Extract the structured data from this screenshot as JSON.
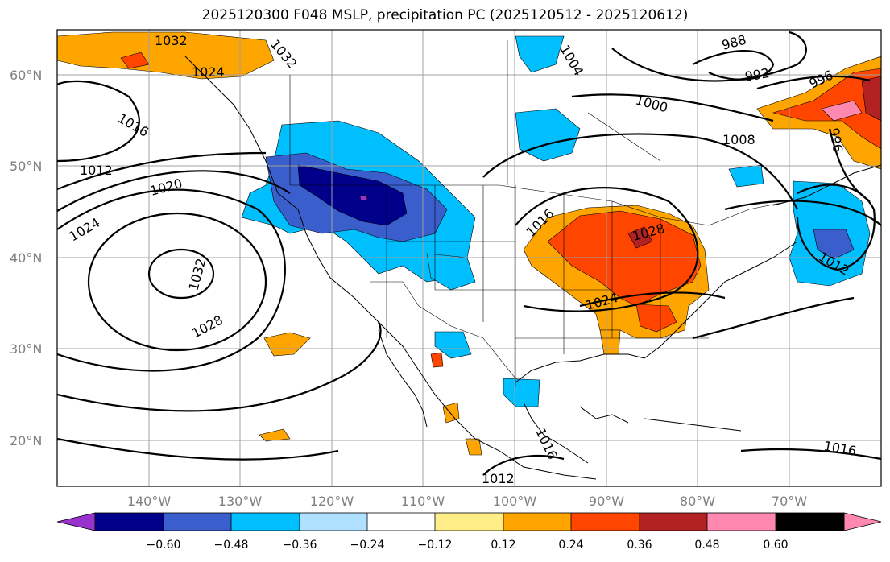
{
  "title": "2025120300 F048 MSLP, precipitation PC (2025120512 - 2025120612)",
  "lat_labels": [
    "60°N",
    "50°N",
    "40°N",
    "30°N",
    "20°N"
  ],
  "lon_labels": [
    "140°W",
    "130°W",
    "120°W",
    "110°W",
    "100°W",
    "90°W",
    "80°W",
    "70°W"
  ],
  "isobar_labels": [
    "1032",
    "1032",
    "1024",
    "1016",
    "1012",
    "1020",
    "1024",
    "1032",
    "1028",
    "1004",
    "988",
    "992",
    "996",
    "1000",
    "1008",
    "996",
    "1016",
    "1028",
    "1024",
    "1012",
    "1016",
    "1012",
    "1016"
  ],
  "colorbar": {
    "ticks": [
      "−0.60",
      "−0.48",
      "−0.36",
      "−0.24",
      "−0.12",
      "0.12",
      "0.24",
      "0.36",
      "0.48",
      "0.60"
    ],
    "colors": [
      "#9932cc",
      "#00008b",
      "#3a5fcd",
      "#00bfff",
      "#b0e0ff",
      "#ffffff",
      "#ffee88",
      "#ffa500",
      "#ff4500",
      "#b22222",
      "#ff88b0"
    ]
  },
  "colors": {
    "neg_strong": "#00008b",
    "neg_mid": "#3a5fcd",
    "neg_light": "#00bfff",
    "pos_light": "#ffa500",
    "pos_mid": "#ff4500",
    "pos_strong": "#b22222",
    "pos_extreme": "#ff88b0"
  }
}
